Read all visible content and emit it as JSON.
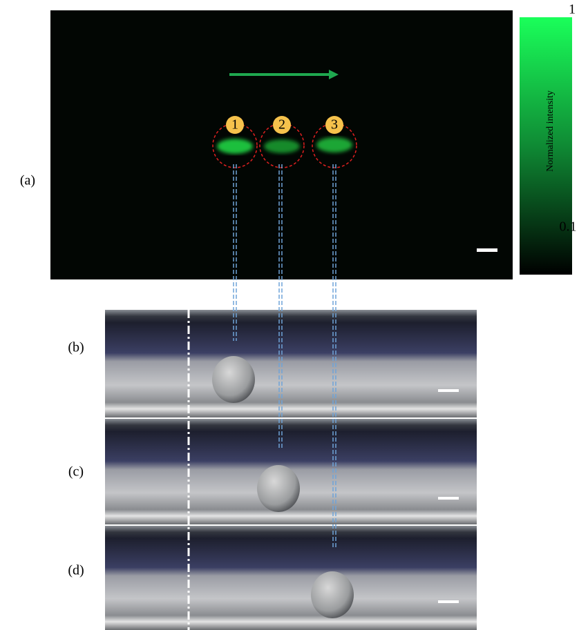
{
  "panels": [
    "(a)",
    "(b)",
    "(c)",
    "(d)"
  ],
  "positions": [
    "1",
    "2",
    "3"
  ],
  "colorbar": {
    "label": "Normalized intensity",
    "max": 1,
    "min": 0.1
  }
}
